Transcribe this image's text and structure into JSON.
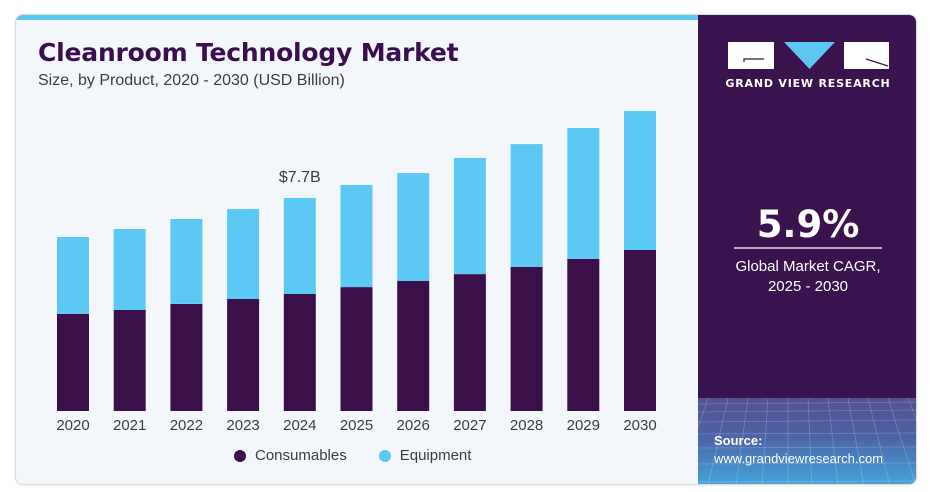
{
  "header": {
    "title": "Cleanroom Technology Market",
    "subtitle": "Size, by Product, 2020 - 2030 (USD Billion)"
  },
  "brand": {
    "name": "GRAND VIEW RESEARCH",
    "logo_icon": "gvr-logo-icon",
    "primary_color": "#3a124d",
    "accent_color": "#5cc8f2"
  },
  "highlight": {
    "value": "5.9%",
    "label_line1": "Global Market CAGR,",
    "label_line2": "2025 - 2030"
  },
  "source": {
    "title": "Source:",
    "url": "www.grandviewresearch.com"
  },
  "chart_data": {
    "type": "bar",
    "stacked": true,
    "title": "Cleanroom Technology Market",
    "subtitle": "Size, by Product, 2020 - 2030 (USD Billion)",
    "xlabel": "",
    "ylabel": "",
    "categories": [
      "2020",
      "2021",
      "2022",
      "2023",
      "2024",
      "2025",
      "2026",
      "2027",
      "2028",
      "2029",
      "2030"
    ],
    "series": [
      {
        "name": "Consumables",
        "color": "#3a0f4a",
        "values": [
          3.51,
          3.65,
          3.87,
          4.05,
          4.23,
          4.48,
          4.7,
          4.95,
          5.21,
          5.5,
          5.82
        ]
      },
      {
        "name": "Equipment",
        "color": "#5cc8f4",
        "values": [
          2.78,
          2.93,
          3.07,
          3.25,
          3.47,
          3.69,
          3.9,
          4.2,
          4.44,
          4.73,
          5.03
        ]
      }
    ],
    "annotations": [
      {
        "category": "2024",
        "text": "$7.7B"
      }
    ],
    "ylim": [
      0,
      11
    ],
    "grid": false,
    "y_axis_visible": false,
    "legend_position": "bottom"
  }
}
